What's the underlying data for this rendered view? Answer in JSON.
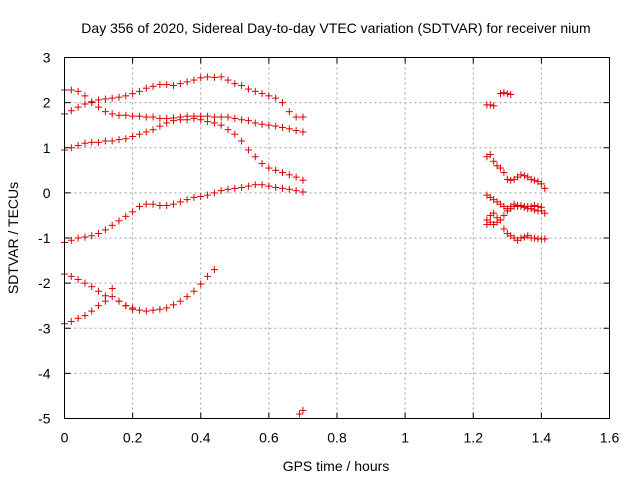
{
  "chart_data": {
    "type": "scatter",
    "title": "Day 356 of 2020, Sidereal Day-to-day VTEC variation (SDTVAR) for receiver nium",
    "xlabel": "GPS time / hours",
    "ylabel": "SDTVAR / TECUs",
    "xlim": [
      0,
      1.6
    ],
    "ylim": [
      -5,
      3
    ],
    "xticks": [
      "0",
      "0.2",
      "0.4",
      "0.6",
      "0.8",
      "1",
      "1.2",
      "1.4",
      "1.6"
    ],
    "yticks": [
      "-5",
      "-4",
      "-3",
      "-2",
      "-1",
      "0",
      "1",
      "2",
      "3"
    ],
    "grid": true,
    "marker": "+",
    "color": "#e00000",
    "series": [
      {
        "name": "s1",
        "x": [
          0.0,
          0.02,
          0.04,
          0.06,
          0.08,
          0.1,
          0.12,
          0.14,
          0.16,
          0.18,
          0.2,
          0.22,
          0.24,
          0.26,
          0.28,
          0.3,
          0.32,
          0.34,
          0.36,
          0.38,
          0.4,
          0.42,
          0.44,
          0.46,
          0.48,
          0.5,
          0.52,
          0.54,
          0.56,
          0.58,
          0.6,
          0.62,
          0.64,
          0.66,
          0.68,
          0.7
        ],
        "y": [
          1.75,
          1.82,
          1.9,
          1.97,
          2.02,
          2.06,
          2.08,
          2.1,
          2.12,
          2.15,
          2.2,
          2.25,
          2.32,
          2.36,
          2.4,
          2.4,
          2.38,
          2.42,
          2.46,
          2.5,
          2.55,
          2.57,
          2.56,
          2.57,
          2.5,
          2.42,
          2.38,
          2.3,
          2.25,
          2.2,
          2.15,
          2.1,
          2.0,
          1.8,
          1.68,
          1.68
        ]
      },
      {
        "name": "s2",
        "x": [
          0.0,
          0.02,
          0.04,
          0.06,
          0.08,
          0.1,
          0.12,
          0.14,
          0.16,
          0.18,
          0.2,
          0.22,
          0.24,
          0.26,
          0.28,
          0.3,
          0.32,
          0.34,
          0.36,
          0.38,
          0.4,
          0.42,
          0.44,
          0.46,
          0.48,
          0.5,
          0.52,
          0.54,
          0.56,
          0.58,
          0.6,
          0.62,
          0.64,
          0.66,
          0.68,
          0.7
        ],
        "y": [
          2.28,
          2.28,
          2.25,
          2.15,
          2.0,
          1.9,
          1.8,
          1.75,
          1.72,
          1.72,
          1.7,
          1.7,
          1.68,
          1.68,
          1.65,
          1.65,
          1.66,
          1.68,
          1.7,
          1.7,
          1.7,
          1.7,
          1.68,
          1.68,
          1.68,
          1.65,
          1.62,
          1.6,
          1.55,
          1.52,
          1.5,
          1.48,
          1.45,
          1.42,
          1.38,
          1.35
        ]
      },
      {
        "name": "s3",
        "x": [
          0.0,
          0.02,
          0.04,
          0.06,
          0.08,
          0.1,
          0.12,
          0.14,
          0.16,
          0.18,
          0.2,
          0.22,
          0.24,
          0.26,
          0.28,
          0.3,
          0.32,
          0.34,
          0.36,
          0.38,
          0.4,
          0.42,
          0.44,
          0.46,
          0.48,
          0.5,
          0.52,
          0.54,
          0.56,
          0.58,
          0.6,
          0.62,
          0.64,
          0.66,
          0.68,
          0.7
        ],
        "y": [
          0.95,
          1.0,
          1.05,
          1.1,
          1.12,
          1.12,
          1.15,
          1.15,
          1.18,
          1.2,
          1.25,
          1.3,
          1.35,
          1.4,
          1.48,
          1.55,
          1.6,
          1.62,
          1.62,
          1.65,
          1.62,
          1.58,
          1.55,
          1.5,
          1.4,
          1.3,
          1.15,
          0.95,
          0.8,
          0.65,
          0.55,
          0.5,
          0.45,
          0.4,
          0.35,
          0.28
        ]
      },
      {
        "name": "s4",
        "x": [
          0.0,
          0.02,
          0.04,
          0.06,
          0.08,
          0.1,
          0.12,
          0.14,
          0.16,
          0.18,
          0.2,
          0.22,
          0.24,
          0.26,
          0.28,
          0.3,
          0.32,
          0.34,
          0.36,
          0.38,
          0.4,
          0.42,
          0.44,
          0.46,
          0.48,
          0.5,
          0.52,
          0.54,
          0.56,
          0.58,
          0.6,
          0.62,
          0.64,
          0.66,
          0.68,
          0.7
        ],
        "y": [
          -1.1,
          -1.05,
          -1.0,
          -0.98,
          -0.95,
          -0.9,
          -0.82,
          -0.72,
          -0.62,
          -0.52,
          -0.42,
          -0.3,
          -0.25,
          -0.25,
          -0.28,
          -0.28,
          -0.25,
          -0.2,
          -0.15,
          -0.1,
          -0.08,
          -0.05,
          0.0,
          0.05,
          0.08,
          0.1,
          0.12,
          0.15,
          0.18,
          0.18,
          0.15,
          0.12,
          0.1,
          0.08,
          0.05,
          0.02
        ]
      },
      {
        "name": "s5",
        "x": [
          0.0,
          0.02,
          0.04,
          0.06,
          0.08,
          0.1,
          0.12,
          0.14,
          0.16,
          0.18,
          0.2,
          0.22,
          0.24,
          0.26,
          0.28,
          0.3,
          0.32,
          0.34,
          0.36,
          0.38,
          0.4,
          0.42,
          0.44
        ],
        "y": [
          -2.9,
          -2.85,
          -2.78,
          -2.72,
          -2.62,
          -2.5,
          -2.4,
          -2.3,
          -2.4,
          -2.5,
          -2.58,
          -2.6,
          -2.62,
          -2.6,
          -2.58,
          -2.55,
          -2.48,
          -2.4,
          -2.3,
          -2.18,
          -2.02,
          -1.85,
          -1.7
        ]
      },
      {
        "name": "s6",
        "x": [
          0.0,
          0.02,
          0.04,
          0.06,
          0.08,
          0.1,
          0.12,
          0.14,
          0.16,
          0.18,
          0.2
        ],
        "y": [
          -1.8,
          -1.85,
          -1.92,
          -2.0,
          -2.08,
          -2.18,
          -2.28,
          -2.12,
          -2.4,
          -2.5,
          -2.55
        ]
      },
      {
        "name": "s7",
        "x": [
          0.69,
          0.7
        ],
        "y": [
          -4.9,
          -4.82
        ]
      },
      {
        "name": "s8",
        "x": [
          1.24,
          1.25,
          1.26,
          1.28,
          1.29,
          1.3,
          1.31
        ],
        "y": [
          1.95,
          1.95,
          1.93,
          2.2,
          2.22,
          2.2,
          2.18
        ]
      },
      {
        "name": "s9",
        "x": [
          1.24,
          1.25,
          1.26,
          1.27,
          1.28,
          1.29,
          1.3,
          1.31,
          1.32,
          1.33,
          1.34,
          1.35,
          1.36,
          1.37,
          1.38,
          1.39,
          1.4,
          1.41
        ],
        "y": [
          0.8,
          0.85,
          0.7,
          0.6,
          0.55,
          0.45,
          0.3,
          0.28,
          0.3,
          0.35,
          0.4,
          0.38,
          0.35,
          0.3,
          0.28,
          0.25,
          0.2,
          0.1
        ]
      },
      {
        "name": "s10",
        "x": [
          1.24,
          1.25,
          1.26,
          1.27,
          1.28,
          1.29,
          1.3,
          1.31,
          1.32,
          1.33,
          1.34,
          1.35,
          1.36,
          1.37,
          1.38,
          1.39,
          1.4,
          1.41
        ],
        "y": [
          -0.05,
          -0.1,
          -0.15,
          -0.2,
          -0.25,
          -0.3,
          -0.35,
          -0.3,
          -0.25,
          -0.28,
          -0.3,
          -0.32,
          -0.3,
          -0.35,
          -0.38,
          -0.4,
          -0.4,
          -0.45
        ]
      },
      {
        "name": "s11",
        "x": [
          1.24,
          1.25,
          1.26,
          1.27,
          1.28,
          1.29,
          1.3,
          1.31,
          1.32,
          1.33,
          1.34,
          1.35,
          1.36,
          1.37,
          1.38,
          1.39,
          1.4,
          1.41
        ],
        "y": [
          -0.6,
          -0.65,
          -0.7,
          -0.65,
          -0.6,
          -0.8,
          -0.9,
          -0.95,
          -1.0,
          -1.05,
          -1.0,
          -0.98,
          -0.95,
          -1.0,
          -1.0,
          -1.02,
          -1.02,
          -1.02
        ]
      },
      {
        "name": "s12",
        "x": [
          1.24,
          1.25,
          1.26,
          1.27,
          1.28,
          1.29,
          1.3,
          1.31,
          1.32,
          1.33,
          1.34,
          1.35,
          1.36,
          1.37,
          1.38,
          1.39,
          1.4
        ],
        "y": [
          -0.7,
          -0.5,
          -0.45,
          -0.55,
          -0.6,
          -0.5,
          -0.4,
          -0.35,
          -0.3,
          -0.3,
          -0.28,
          -0.3,
          -0.35,
          -0.3,
          -0.28,
          -0.3,
          -0.32
        ]
      }
    ]
  }
}
